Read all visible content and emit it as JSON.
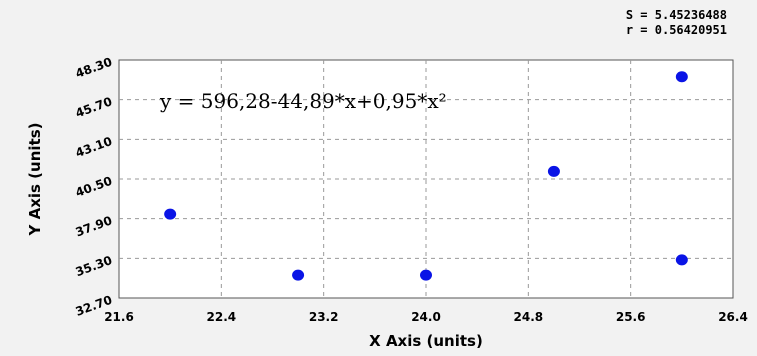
{
  "stats": {
    "s_line": "S = 5.45236488",
    "r_line": "r = 0.56420951"
  },
  "chart_data": {
    "type": "scatter",
    "xlabel": "X Axis (units)",
    "ylabel": "Y Axis (units)",
    "xlim": [
      21.6,
      26.4
    ],
    "ylim": [
      32.7,
      48.3
    ],
    "x_ticks": [
      "21.6",
      "22.4",
      "23.2",
      "24.0",
      "24.8",
      "25.6",
      "26.4"
    ],
    "y_ticks": [
      "32.70",
      "35.30",
      "37.90",
      "40.50",
      "43.10",
      "45.70",
      "48.30"
    ],
    "grid": true,
    "points": [
      {
        "x": 22.0,
        "y": 38.2
      },
      {
        "x": 23.0,
        "y": 34.2
      },
      {
        "x": 24.0,
        "y": 34.2
      },
      {
        "x": 25.0,
        "y": 41.0
      },
      {
        "x": 26.0,
        "y": 47.2
      },
      {
        "x": 26.0,
        "y": 35.2
      }
    ],
    "fit": {
      "equation": "y = 596,28-44,89*x+0,95*x²",
      "a": 596.28,
      "b": -44.89,
      "c": 0.95
    },
    "colors": {
      "points": "#0a14e6",
      "fit_line": "#e60000",
      "grid": "#9a9a9a",
      "plot_bg": "#ffffff",
      "frame": "#555555"
    }
  }
}
